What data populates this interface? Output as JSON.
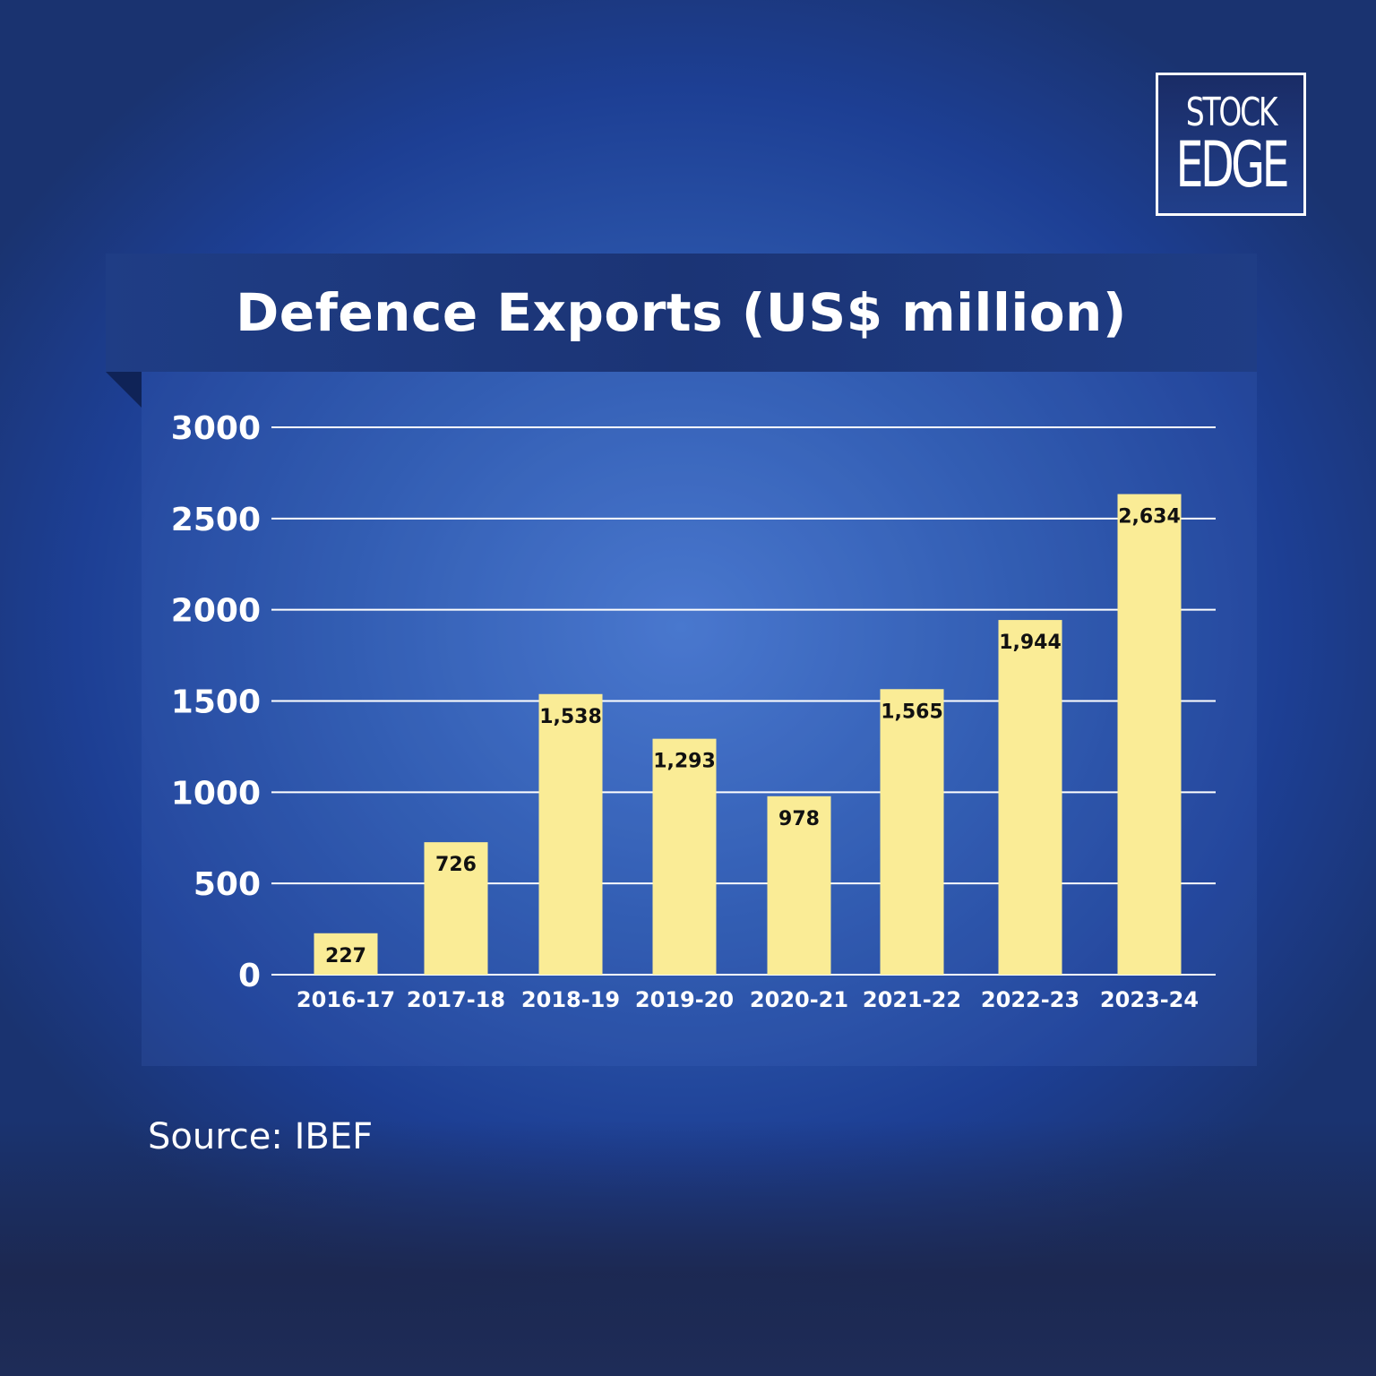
{
  "logo": {
    "line1": "STOCK",
    "line2": "EDGE"
  },
  "title": "Defence Exports (US$ million)",
  "source": "Source: IBEF",
  "colors": {
    "bar": "#faec96",
    "grid": "#ffffff",
    "text": "#ffffff",
    "label": "#111111"
  },
  "chart_data": {
    "type": "bar",
    "title": "Defence Exports (US$ million)",
    "categories": [
      "2016-17",
      "2017-18",
      "2018-19",
      "2019-20",
      "2020-21",
      "2021-22",
      "2022-23",
      "2023-24"
    ],
    "values": [
      227,
      726,
      1538,
      1293,
      978,
      1565,
      1944,
      2634
    ],
    "value_labels": [
      "227",
      "726",
      "1,538",
      "1,293",
      "978",
      "1,565",
      "1,944",
      "2,634"
    ],
    "yticks": [
      0,
      500,
      1000,
      1500,
      2000,
      2500,
      3000
    ],
    "ylim": [
      0,
      3000
    ],
    "grid": true,
    "xlabel": "",
    "ylabel": ""
  }
}
